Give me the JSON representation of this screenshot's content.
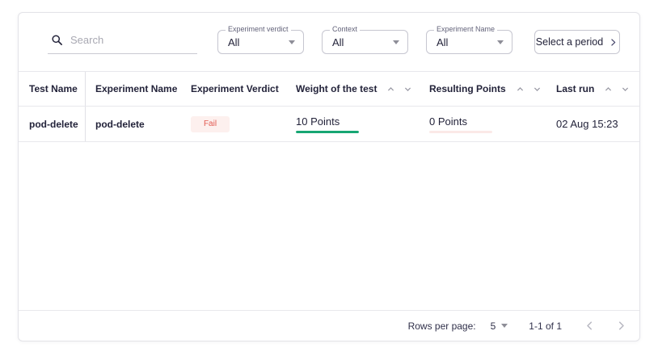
{
  "toolbar": {
    "search": {
      "placeholder": "Search",
      "value": ""
    },
    "filters": [
      {
        "label": "Experiment verdict",
        "value": "All"
      },
      {
        "label": "Context",
        "value": "All"
      },
      {
        "label": "Experiment Name",
        "value": "All"
      }
    ],
    "period_button_label": "Select a period"
  },
  "table": {
    "columns": [
      {
        "label": "Test Name",
        "sortable": false
      },
      {
        "label": "Experiment Name",
        "sortable": false
      },
      {
        "label": "Experiment Verdict",
        "sortable": false
      },
      {
        "label": "Weight of the test",
        "sortable": true
      },
      {
        "label": "Resulting Points",
        "sortable": true
      },
      {
        "label": "Last run",
        "sortable": true
      }
    ],
    "rows": [
      {
        "test_name": "pod-delete",
        "experiment_name": "pod-delete",
        "verdict": "Fail",
        "weight": "10 Points",
        "weight_progress_percent": 100,
        "resulting_points": "0 Points",
        "resulting_progress_percent": 0,
        "last_run": "02 Aug 15:23"
      }
    ]
  },
  "pagination": {
    "rows_per_page_label": "Rows per page:",
    "rows_per_page_value": "5",
    "range_label": "1-1 of 1"
  },
  "colors": {
    "text_dark": "#23233a",
    "success_green": "#16a673",
    "fail_text": "#e25a52",
    "fail_bg": "#fdf0ee",
    "progress_track_pink": "#fbe9e7",
    "border": "#e3e3e8"
  },
  "icons": {
    "search": "search-icon (magnifier)",
    "select_caret": "caret-down-icon",
    "period_chevron": "chevron-right-icon",
    "sort_up": "chevron-up-icon",
    "sort_down": "chevron-down-icon",
    "page_prev": "chevron-left-icon",
    "page_next": "chevron-right-icon"
  }
}
